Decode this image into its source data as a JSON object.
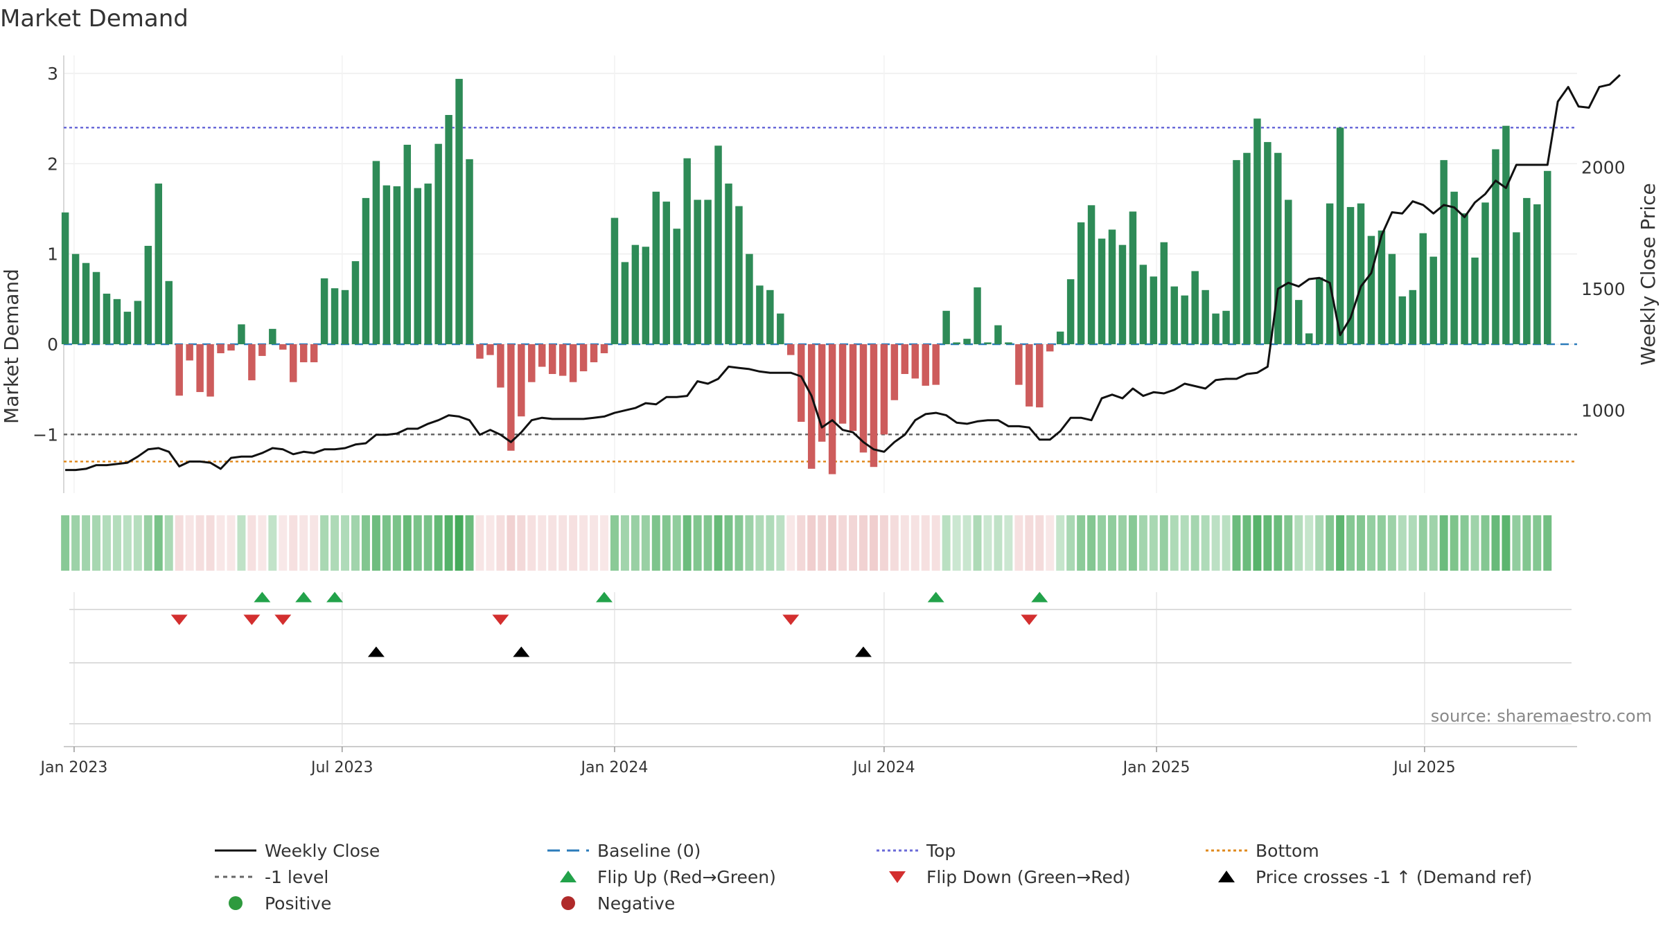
{
  "chart_data": {
    "type": "bar",
    "title": "Market Demand",
    "ylabel": "Market Demand",
    "y2label": "Weekly Close Price",
    "ylim": [
      -1.65,
      3.2
    ],
    "y2lim": [
      660,
      2460
    ],
    "yticks": [
      -1,
      0,
      1,
      2,
      3
    ],
    "y2ticks": [
      1000,
      1500,
      2000
    ],
    "grid": true,
    "x_start": "2022-12-25",
    "x_end": "2025-10-12",
    "x_tick_labels": [
      {
        "date": "2023-01-01",
        "label": "Jan 2023"
      },
      {
        "date": "2023-07-01",
        "label": "Jul 2023"
      },
      {
        "date": "2024-01-01",
        "label": "Jan 2024"
      },
      {
        "date": "2024-07-01",
        "label": "Jul 2024"
      },
      {
        "date": "2025-01-01",
        "label": "Jan 2025"
      },
      {
        "date": "2025-07-01",
        "label": "Jul 2025"
      }
    ],
    "first_week": "2022-12-26",
    "demand": [
      1.46,
      1.0,
      0.9,
      0.8,
      0.56,
      0.5,
      0.36,
      0.48,
      1.09,
      1.78,
      0.7,
      -0.57,
      -0.18,
      -0.53,
      -0.58,
      -0.1,
      -0.07,
      0.22,
      -0.4,
      -0.13,
      0.17,
      -0.06,
      -0.42,
      -0.2,
      -0.2,
      0.73,
      0.62,
      0.6,
      0.92,
      1.62,
      2.03,
      1.76,
      1.75,
      2.21,
      1.73,
      1.78,
      2.22,
      2.54,
      2.94,
      2.05,
      -0.16,
      -0.12,
      -0.48,
      -1.18,
      -0.8,
      -0.42,
      -0.25,
      -0.33,
      -0.35,
      -0.42,
      -0.3,
      -0.2,
      -0.1,
      1.4,
      0.91,
      1.1,
      1.08,
      1.69,
      1.58,
      1.28,
      2.06,
      1.6,
      1.6,
      2.2,
      1.78,
      1.53,
      1.0,
      0.65,
      0.6,
      0.34,
      -0.12,
      -0.86,
      -1.38,
      -1.08,
      -1.44,
      -0.88,
      -0.96,
      -1.2,
      -1.36,
      -1.0,
      -0.62,
      -0.33,
      -0.38,
      -0.46,
      -0.45,
      0.37,
      0.02,
      0.06,
      0.63,
      0.02,
      0.21,
      0.02,
      -0.45,
      -0.69,
      -0.7,
      -0.08,
      0.14,
      0.72,
      1.35,
      1.54,
      1.17,
      1.27,
      1.1,
      1.47,
      0.88,
      0.75,
      1.13,
      0.64,
      0.54,
      0.81,
      0.6,
      0.34,
      0.37,
      2.04,
      2.12,
      2.5,
      2.24,
      2.12,
      1.6,
      0.49,
      0.12,
      0.74,
      1.56,
      2.4,
      1.52,
      1.56,
      1.2,
      1.26,
      1.0,
      0.53,
      0.6,
      1.23,
      0.97,
      2.04,
      1.69,
      1.45,
      0.96,
      1.57,
      2.16,
      2.42,
      1.24,
      1.62,
      1.55,
      1.92
    ],
    "weekly_close": [
      755,
      755,
      760,
      775,
      775,
      780,
      785,
      810,
      840,
      845,
      830,
      770,
      790,
      790,
      785,
      760,
      805,
      810,
      810,
      825,
      845,
      840,
      820,
      830,
      825,
      840,
      840,
      845,
      860,
      865,
      900,
      900,
      905,
      925,
      925,
      945,
      960,
      980,
      975,
      960,
      900,
      920,
      900,
      870,
      910,
      960,
      970,
      965,
      965,
      965,
      965,
      970,
      975,
      990,
      1000,
      1010,
      1030,
      1025,
      1055,
      1055,
      1060,
      1120,
      1110,
      1130,
      1180,
      1175,
      1170,
      1160,
      1155,
      1155,
      1155,
      1140,
      1060,
      930,
      960,
      920,
      910,
      870,
      840,
      830,
      870,
      900,
      960,
      985,
      990,
      980,
      950,
      945,
      955,
      960,
      960,
      935,
      935,
      930,
      880,
      880,
      915,
      970,
      970,
      960,
      1050,
      1065,
      1050,
      1090,
      1060,
      1075,
      1070,
      1085,
      1110,
      1100,
      1090,
      1125,
      1130,
      1130,
      1150,
      1155,
      1180,
      1500,
      1525,
      1510,
      1540,
      1545,
      1525,
      1310,
      1380,
      1510,
      1565,
      1720,
      1815,
      1810,
      1860,
      1845,
      1810,
      1845,
      1835,
      1795,
      1855,
      1890,
      1945,
      1915,
      2010,
      2010,
      2010,
      2010,
      2270,
      2330,
      2250,
      2245,
      2330,
      2340,
      2380
    ],
    "flip_up": [
      "2023-05-08",
      "2023-06-05",
      "2023-06-26",
      "2023-12-25",
      "2024-08-05",
      "2024-10-14"
    ],
    "flip_down": [
      "2023-03-13",
      "2023-05-01",
      "2023-05-22",
      "2023-10-16",
      "2024-04-29",
      "2024-10-07"
    ],
    "price_crosses": [
      "2023-07-24",
      "2023-10-30",
      "2024-06-17"
    ],
    "reference_lines": {
      "top": {
        "value": 2.4,
        "color": "#6a6ad8"
      },
      "minus_one": {
        "value": -1,
        "color": "#666666"
      },
      "bottom": {
        "value": -1.3,
        "color": "#e08a1e"
      },
      "baseline": {
        "value": 0,
        "color": "#2b7bba"
      }
    },
    "colors": {
      "positive": "#2e8b57",
      "negative": "#cd5c5c",
      "price": "#111111",
      "flip_up": "#22a24a",
      "flip_down": "#d32f2f",
      "cross": "#000000",
      "positive_dot": "#2e9a3e",
      "negative_dot": "#b02a2a"
    },
    "source_note": "source: sharemaestro.com",
    "legend": [
      {
        "key": "weekly_close",
        "label": "Weekly Close",
        "symbol": "solid-line"
      },
      {
        "key": "baseline",
        "label": "Baseline (0)",
        "symbol": "dashed-blue-line"
      },
      {
        "key": "top",
        "label": "Top",
        "symbol": "dotted-purple-line"
      },
      {
        "key": "bottom",
        "label": "Bottom",
        "symbol": "dotted-orange-line"
      },
      {
        "key": "minus_one",
        "label": "-1 level",
        "symbol": "dashed-gray-line"
      },
      {
        "key": "flip_up",
        "label": "Flip Up (Red→Green)",
        "symbol": "triangle-up-green"
      },
      {
        "key": "flip_down",
        "label": "Flip Down (Green→Red)",
        "symbol": "triangle-down-red"
      },
      {
        "key": "price_cross",
        "label": "Price crosses -1 ↑ (Demand ref)",
        "symbol": "triangle-up-black"
      },
      {
        "key": "positive",
        "label": "Positive",
        "symbol": "dot-green"
      },
      {
        "key": "negative",
        "label": "Negative",
        "symbol": "dot-red"
      }
    ]
  }
}
